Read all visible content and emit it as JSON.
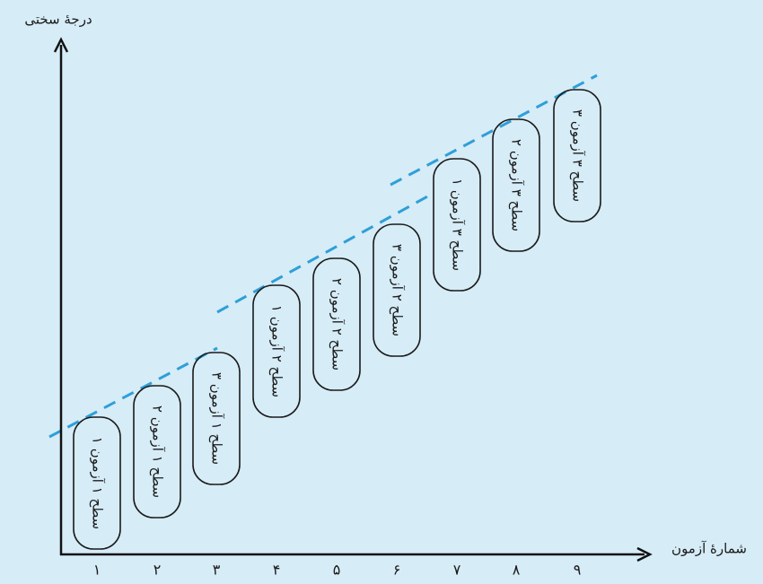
{
  "y_axis_label": "درجهٔ سختی",
  "x_axis_label": "شمارهٔ آزمون",
  "x_ticks": [
    "۱",
    "۲",
    "۳",
    "۴",
    "۵",
    "۶",
    "۷",
    "۸",
    "۹"
  ],
  "boxes": [
    {
      "label": "سطح ۱ آزمون ۱"
    },
    {
      "label": "سطح ۱ آزمون ۲"
    },
    {
      "label": "سطح ۱ آزمون ۳"
    },
    {
      "label": "سطح ۲ آزمون ۱"
    },
    {
      "label": "سطح ۲ آزمون ۲"
    },
    {
      "label": "سطح ۲ آزمون ۳"
    },
    {
      "label": "سطح ۳ آزمون ۱"
    },
    {
      "label": "سطح ۳ آزمون ۲"
    },
    {
      "label": "سطح ۳ آزمون ۳"
    }
  ]
}
